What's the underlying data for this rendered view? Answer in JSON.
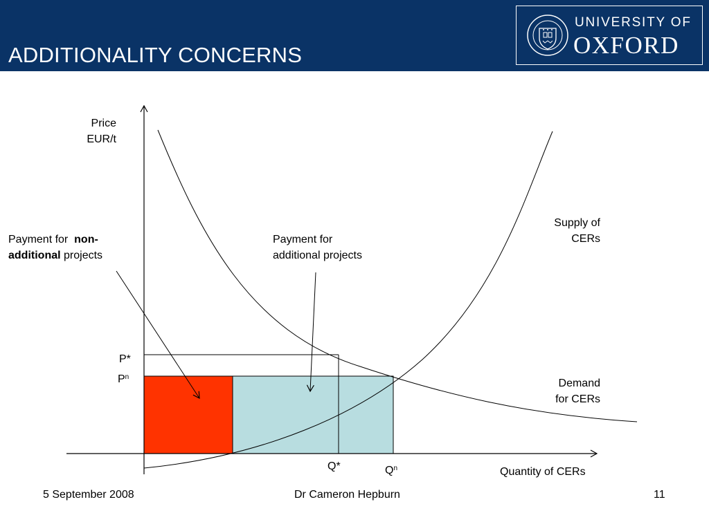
{
  "header": {
    "title": "ADDITIONALITY CONCERNS",
    "logo_line1": "UNIVERSITY OF",
    "logo_line2": "OXFORD",
    "logo_icon": "oxford-crest-icon"
  },
  "diagram": {
    "y_axis_label": [
      "Price",
      "EUR/t"
    ],
    "x_axis_label": "Quantity of CERs",
    "supply_label": [
      "Supply of",
      "CERs"
    ],
    "demand_label": [
      "Demand",
      "for CERs"
    ],
    "nonadditional_label": {
      "prefix": "Payment for ",
      "bold1": "non-",
      "bold2": "additional",
      "suffix": " projects"
    },
    "additional_label": [
      "Payment for",
      "additional projects"
    ],
    "p_star": "P*",
    "p_n_base": "P",
    "p_n_sup": "n",
    "q_star": "Q*",
    "q_n_base": "Q",
    "q_n_sup": "n",
    "colors": {
      "nonadditional_fill": "#ff3300",
      "additional_fill": "#b8dde0",
      "header_bg": "#0a3366"
    }
  },
  "footer": {
    "date": "5 September 2008",
    "author": "Dr Cameron Hepburn",
    "page": "11"
  }
}
